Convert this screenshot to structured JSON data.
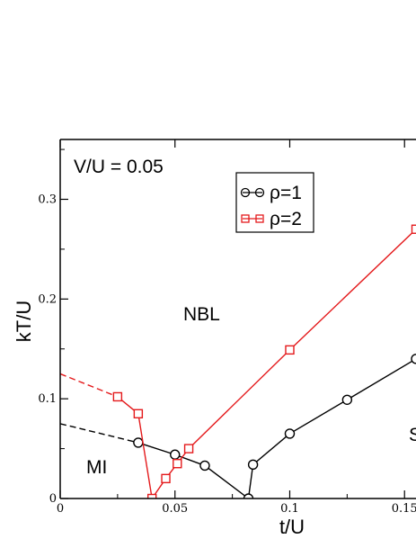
{
  "chart_data": {
    "type": "line",
    "xlabel": "t/U",
    "ylabel": "kT/U",
    "xlim": [
      0,
      0.155
    ],
    "ylim": [
      0,
      0.36
    ],
    "x_ticks": [
      0,
      0.05,
      0.1,
      0.15
    ],
    "x_tick_labels": [
      "0",
      "0.05",
      "0.1",
      "0.15"
    ],
    "y_ticks": [
      0,
      0.1,
      0.2,
      0.3
    ],
    "y_tick_labels": [
      "0",
      "0.1",
      "0.2",
      "0.3"
    ],
    "grid": false,
    "legend_position": "top-center",
    "annotations": {
      "params": "V/U = 0.05",
      "nbl": "NBL",
      "mi": "MI",
      "sf": "S"
    },
    "series": [
      {
        "name": "ρ=1",
        "color": "#000000",
        "marker": "circle",
        "points": [
          [
            0.034,
            0.056
          ],
          [
            0.05,
            0.044
          ],
          [
            0.063,
            0.033
          ],
          [
            0.082,
            0.0
          ],
          [
            0.084,
            0.034
          ],
          [
            0.1,
            0.065
          ],
          [
            0.125,
            0.099
          ],
          [
            0.155,
            0.14
          ]
        ],
        "dashed": [
          [
            0.0,
            0.075
          ],
          [
            0.034,
            0.056
          ]
        ]
      },
      {
        "name": "ρ=2",
        "color": "#e41a1c",
        "marker": "square",
        "points": [
          [
            0.025,
            0.102
          ],
          [
            0.034,
            0.085
          ],
          [
            0.04,
            0.0
          ],
          [
            0.046,
            0.02
          ],
          [
            0.051,
            0.035
          ],
          [
            0.056,
            0.05
          ],
          [
            0.1,
            0.149
          ],
          [
            0.155,
            0.27
          ]
        ],
        "dashed": [
          [
            0.0,
            0.125
          ],
          [
            0.025,
            0.102
          ]
        ]
      }
    ]
  }
}
